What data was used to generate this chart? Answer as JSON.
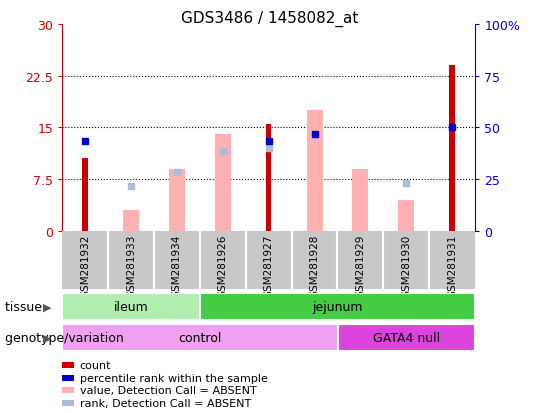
{
  "title": "GDS3486 / 1458082_at",
  "samples": [
    "GSM281932",
    "GSM281933",
    "GSM281934",
    "GSM281926",
    "GSM281927",
    "GSM281928",
    "GSM281929",
    "GSM281930",
    "GSM281931"
  ],
  "red_bars": [
    10.5,
    0,
    0,
    0,
    15.5,
    0,
    0,
    0,
    24.0
  ],
  "blue_squares": [
    13.0,
    0,
    0,
    0,
    13.0,
    14.0,
    0,
    0,
    15.0
  ],
  "pink_bars": [
    0,
    3.0,
    9.0,
    14.0,
    0,
    17.5,
    9.0,
    4.5,
    0
  ],
  "light_blue_squares": [
    0,
    6.5,
    8.5,
    11.5,
    12.0,
    14.0,
    0,
    7.0,
    0
  ],
  "left_yticks": [
    0,
    7.5,
    15,
    22.5,
    30
  ],
  "left_ylabels": [
    "0",
    "7.5",
    "15",
    "22.5",
    "30"
  ],
  "right_yticks": [
    0,
    25,
    50,
    75,
    100
  ],
  "right_ylabels": [
    "0",
    "25",
    "50",
    "75",
    "100%"
  ],
  "ylim": [
    0,
    30
  ],
  "right_ylim": [
    0,
    100
  ],
  "dotted_lines": [
    7.5,
    15,
    22.5
  ],
  "tissue_groups": [
    {
      "label": "ileum",
      "start": 0,
      "end": 3,
      "color": "#b0eeb0"
    },
    {
      "label": "jejunum",
      "start": 3,
      "end": 9,
      "color": "#44cc44"
    }
  ],
  "genotype_groups": [
    {
      "label": "control",
      "start": 0,
      "end": 6,
      "color": "#f0a0f0"
    },
    {
      "label": "GATA4 null",
      "start": 6,
      "end": 9,
      "color": "#dd44dd"
    }
  ],
  "red_color": "#cc0000",
  "blue_color": "#0000cc",
  "pink_color": "#ffb0b0",
  "light_blue_color": "#aabbdd",
  "left_ylabel_color": "#cc0000",
  "right_ylabel_color": "#0000cc",
  "tissue_label": "tissue",
  "genotype_label": "genotype/variation",
  "sample_bg_color": "#c8c8c8",
  "plot_bg_color": "#ffffff"
}
